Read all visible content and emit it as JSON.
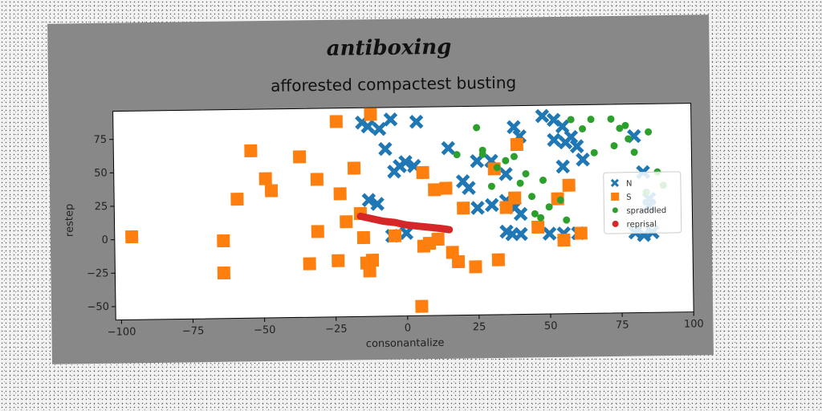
{
  "chart_data": {
    "type": "scatter",
    "suptitle": "antiboxing",
    "title": "afforested compactest busting",
    "xlabel": "consonantalize",
    "ylabel": "restep",
    "xlim": [
      -102,
      100
    ],
    "ylim": [
      -60,
      96
    ],
    "xticks": [
      -100,
      -75,
      -50,
      -25,
      0,
      25,
      50,
      75,
      100
    ],
    "yticks": [
      -50,
      -25,
      0,
      25,
      50,
      75
    ],
    "grid": false,
    "legend": "center-right",
    "series": [
      {
        "name": "N",
        "marker": "x",
        "color": "#1f77b4",
        "points": [
          [
            -15,
            85
          ],
          [
            -13,
            82
          ],
          [
            -5,
            87
          ],
          [
            -9,
            80
          ],
          [
            4,
            85
          ],
          [
            -7,
            65
          ],
          [
            -4,
            48
          ],
          [
            -2,
            52
          ],
          [
            0,
            55
          ],
          [
            3,
            52
          ],
          [
            -13,
            27
          ],
          [
            -10,
            24
          ],
          [
            -5,
            0
          ],
          [
            0,
            2
          ],
          [
            15,
            65
          ],
          [
            20,
            40
          ],
          [
            22,
            35
          ],
          [
            25,
            55
          ],
          [
            30,
            55
          ],
          [
            35,
            45
          ],
          [
            38,
            80
          ],
          [
            40,
            73
          ],
          [
            48,
            88
          ],
          [
            52,
            85
          ],
          [
            55,
            80
          ],
          [
            58,
            72
          ],
          [
            56,
            68
          ],
          [
            60,
            65
          ],
          [
            52,
            70
          ],
          [
            55,
            50
          ],
          [
            62,
            55
          ],
          [
            25,
            20
          ],
          [
            30,
            22
          ],
          [
            35,
            25
          ],
          [
            38,
            20
          ],
          [
            40,
            15
          ],
          [
            35,
            2
          ],
          [
            37,
            0
          ],
          [
            40,
            0
          ],
          [
            50,
            0
          ],
          [
            55,
            0
          ],
          [
            60,
            0
          ],
          [
            80,
            72
          ],
          [
            83,
            45
          ],
          [
            85,
            25
          ],
          [
            85,
            20
          ],
          [
            80,
            0
          ],
          [
            83,
            -2
          ],
          [
            86,
            0
          ]
        ]
      },
      {
        "name": "S",
        "marker": "s",
        "color": "#ff7f0e",
        "points": [
          [
            -96,
            2
          ],
          [
            -64,
            -2
          ],
          [
            -64,
            -26
          ],
          [
            -54,
            65
          ],
          [
            -59,
            29
          ],
          [
            -49,
            44
          ],
          [
            -47,
            35
          ],
          [
            -37,
            60
          ],
          [
            -34,
            -20
          ],
          [
            -31,
            43
          ],
          [
            -31,
            4
          ],
          [
            -24,
            86
          ],
          [
            -24,
            -18
          ],
          [
            -23,
            32
          ],
          [
            -21,
            11
          ],
          [
            -18,
            51
          ],
          [
            -16,
            17
          ],
          [
            -15,
            -1
          ],
          [
            -14,
            -20
          ],
          [
            -13,
            -26
          ],
          [
            -12,
            91
          ],
          [
            -12,
            -18
          ],
          [
            -4,
            0
          ],
          [
            5,
            -53
          ],
          [
            6,
            47
          ],
          [
            6,
            -8
          ],
          [
            8,
            -6
          ],
          [
            10,
            34
          ],
          [
            11,
            -3
          ],
          [
            14,
            35
          ],
          [
            16,
            -13
          ],
          [
            18,
            -20
          ],
          [
            20,
            20
          ],
          [
            24,
            -24
          ],
          [
            31,
            49
          ],
          [
            32,
            -19
          ],
          [
            35,
            20
          ],
          [
            38,
            27
          ],
          [
            39,
            67
          ],
          [
            46,
            5
          ],
          [
            53,
            26
          ],
          [
            55,
            -5
          ],
          [
            57,
            36
          ],
          [
            61,
            0
          ]
        ]
      },
      {
        "name": "spraddled",
        "marker": "o",
        "color": "#2ca02c",
        "points": [
          [
            25,
            80
          ],
          [
            27,
            63
          ],
          [
            27,
            60
          ],
          [
            30,
            36
          ],
          [
            32,
            50
          ],
          [
            35,
            55
          ],
          [
            38,
            58
          ],
          [
            40,
            38
          ],
          [
            42,
            45
          ],
          [
            44,
            28
          ],
          [
            45,
            15
          ],
          [
            47,
            12
          ],
          [
            50,
            20
          ],
          [
            48,
            40
          ],
          [
            54,
            25
          ],
          [
            56,
            10
          ],
          [
            58,
            85
          ],
          [
            62,
            78
          ],
          [
            65,
            85
          ],
          [
            66,
            60
          ],
          [
            72,
            85
          ],
          [
            73,
            65
          ],
          [
            75,
            78
          ],
          [
            77,
            80
          ],
          [
            78,
            70
          ],
          [
            80,
            60
          ],
          [
            85,
            75
          ],
          [
            88,
            45
          ],
          [
            90,
            35
          ],
          [
            84,
            30
          ],
          [
            18,
            60
          ]
        ]
      },
      {
        "name": "reprisal",
        "marker": "line",
        "color": "#d62728",
        "points": [
          [
            -16,
            15
          ],
          [
            -12,
            13
          ],
          [
            -8,
            11
          ],
          [
            -4,
            10
          ],
          [
            0,
            8
          ],
          [
            4,
            7
          ],
          [
            8,
            6
          ],
          [
            12,
            5
          ],
          [
            15,
            4
          ]
        ]
      }
    ]
  }
}
